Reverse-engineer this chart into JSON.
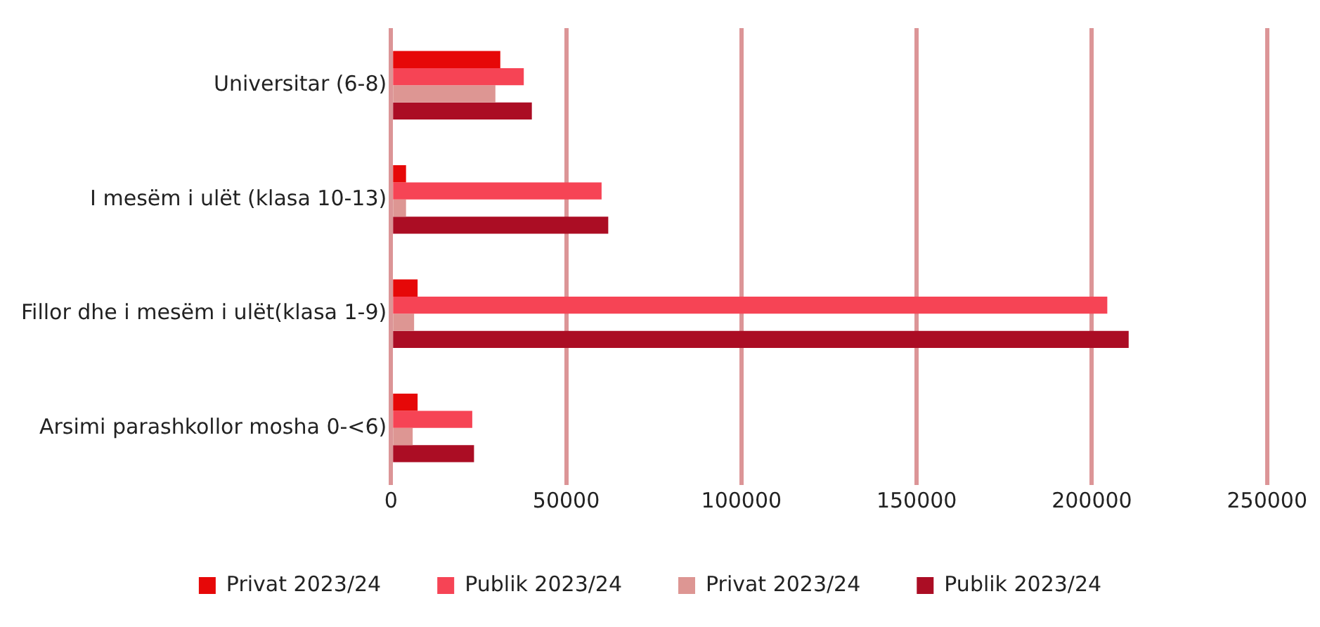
{
  "chart_data": {
    "type": "bar",
    "orientation": "horizontal",
    "categories": [
      "Universitar (6-8)",
      "I mesëm i ulët (klasa 10-13)",
      "Fillor dhe i mesëm i ulët(klasa 1-9)",
      "Arsimi parashkollor mosha 0-<6)"
    ],
    "series": [
      {
        "name": "Privat 2023/24",
        "color": "#e60808",
        "values": [
          31200,
          4300,
          7600,
          7600
        ]
      },
      {
        "name": "Publik 2023/24",
        "color": "#f64455",
        "values": [
          37900,
          60100,
          204400,
          23200
        ]
      },
      {
        "name": "Privat 2023/24",
        "color": "#dd9693",
        "values": [
          29800,
          4300,
          6600,
          6200
        ]
      },
      {
        "name": "Publik 2023/24",
        "color": "#ab0d24",
        "values": [
          40200,
          62000,
          210500,
          23700
        ]
      }
    ],
    "xlim": [
      0,
      250000
    ],
    "xticks": [
      0,
      50000,
      100000,
      150000,
      200000,
      250000
    ],
    "grid": "x",
    "legend": "bottom"
  }
}
